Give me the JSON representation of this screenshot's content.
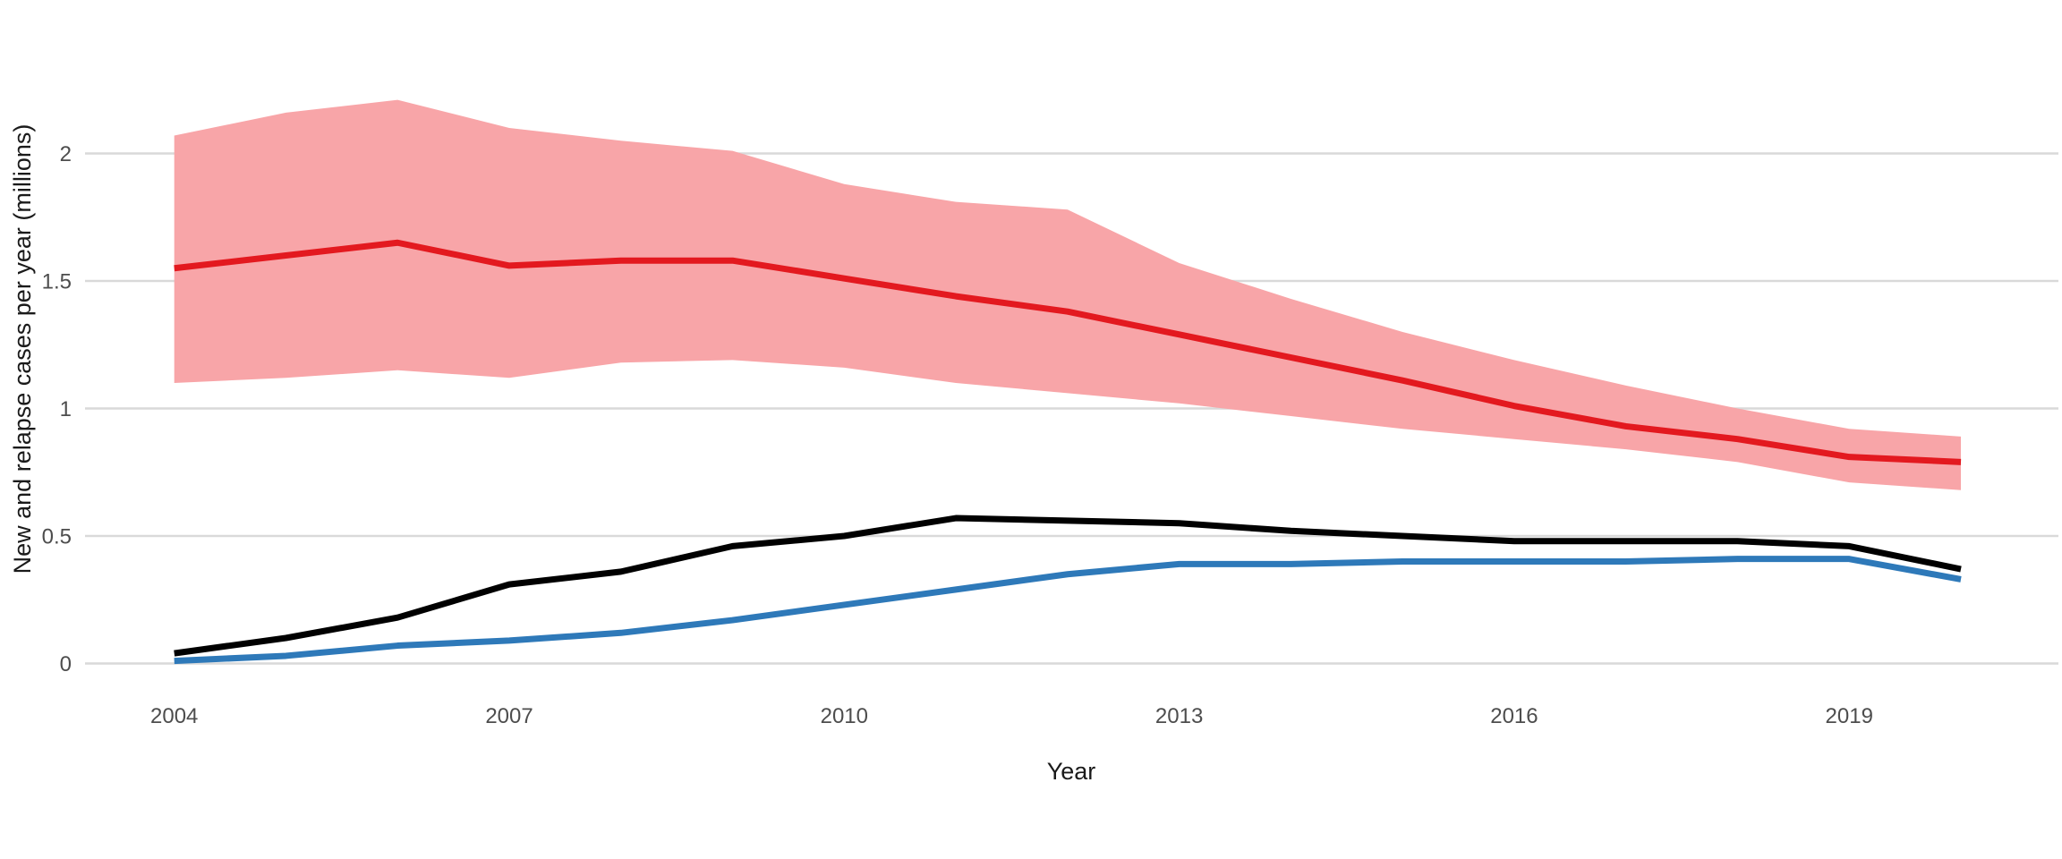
{
  "chart_data": {
    "type": "line",
    "title": "",
    "xlabel": "Year",
    "ylabel": "New and relapse cases per year (millions)",
    "legend": "none",
    "grid": "horizontal-major-only",
    "background": "white",
    "xlim": [
      2004,
      2020
    ],
    "ylim": [
      0,
      2.35
    ],
    "x": [
      2004,
      2005,
      2006,
      2007,
      2008,
      2009,
      2010,
      2011,
      2012,
      2013,
      2014,
      2015,
      2016,
      2017,
      2018,
      2019,
      2020
    ],
    "x_ticks": [
      2004,
      2007,
      2010,
      2013,
      2016,
      2019
    ],
    "x_tick_labels": [
      "2004",
      "2007",
      "2010",
      "2013",
      "2016",
      "2019"
    ],
    "y_ticks": [
      0,
      0.5,
      1,
      1.5,
      2
    ],
    "y_tick_labels": [
      "0",
      "0.5",
      "1",
      "1.5",
      "2"
    ],
    "series": [
      {
        "name": "red-line-with-confidence-band",
        "color": "#e3191f",
        "band_color": "#f8a5a8",
        "values": [
          1.55,
          1.6,
          1.65,
          1.56,
          1.58,
          1.58,
          1.51,
          1.44,
          1.38,
          1.29,
          1.2,
          1.11,
          1.01,
          0.93,
          0.88,
          0.81,
          0.79
        ],
        "band_upper": [
          2.07,
          2.16,
          2.21,
          2.1,
          2.05,
          2.01,
          1.88,
          1.81,
          1.78,
          1.57,
          1.43,
          1.3,
          1.19,
          1.09,
          1.0,
          0.92,
          0.89
        ],
        "band_lower": [
          1.1,
          1.12,
          1.15,
          1.12,
          1.18,
          1.19,
          1.16,
          1.1,
          1.06,
          1.02,
          0.97,
          0.92,
          0.88,
          0.84,
          0.79,
          0.71,
          0.68
        ]
      },
      {
        "name": "black-line",
        "color": "#000000",
        "values": [
          0.04,
          0.1,
          0.18,
          0.31,
          0.36,
          0.46,
          0.5,
          0.57,
          0.56,
          0.55,
          0.52,
          0.5,
          0.48,
          0.48,
          0.48,
          0.46,
          0.37
        ]
      },
      {
        "name": "blue-line",
        "color": "#2e79b9",
        "values": [
          0.01,
          0.03,
          0.07,
          0.09,
          0.12,
          0.17,
          0.23,
          0.29,
          0.35,
          0.39,
          0.39,
          0.4,
          0.4,
          0.4,
          0.41,
          0.41,
          0.33
        ]
      }
    ]
  },
  "colors": {
    "gridline": "#d9d9d9",
    "tick_text": "#4d4d4d",
    "axis_title_text": "#1a1a1a",
    "background": "#ffffff"
  }
}
